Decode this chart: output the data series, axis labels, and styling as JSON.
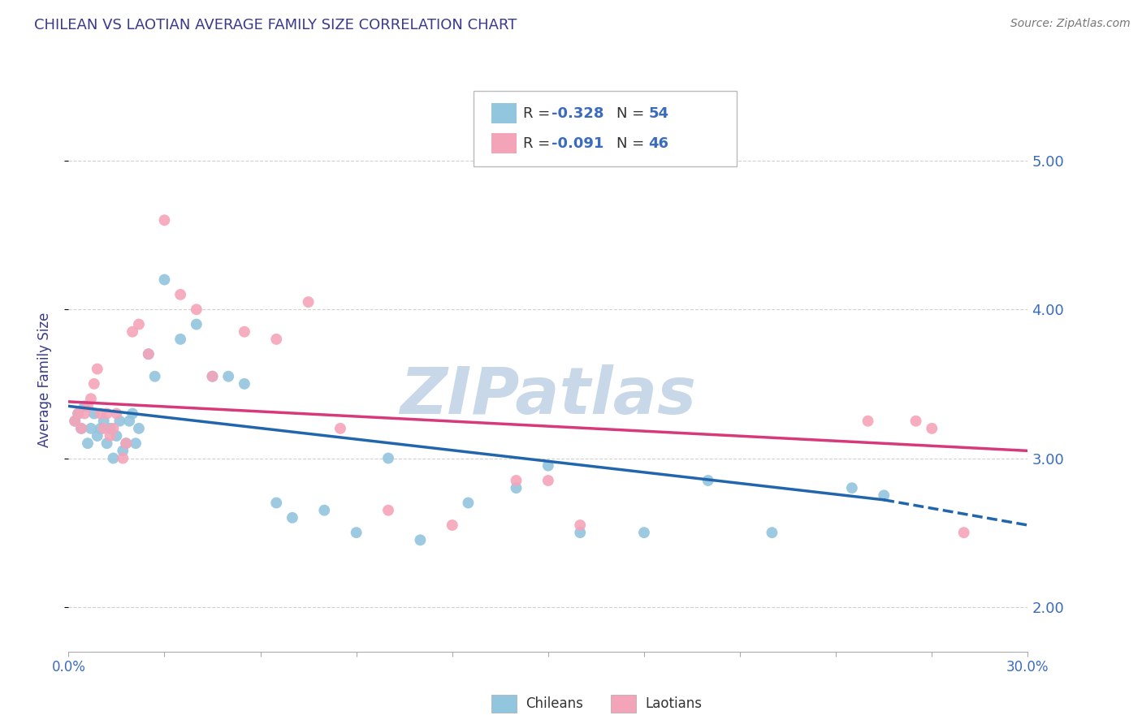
{
  "title": "CHILEAN VS LAOTIAN AVERAGE FAMILY SIZE CORRELATION CHART",
  "source_text": "Source: ZipAtlas.com",
  "ylabel": "Average Family Size",
  "color_chileans": "#92c5de",
  "color_laotians": "#f4a4b8",
  "color_line_chileans": "#2166ac",
  "color_line_laotians": "#d6604d",
  "title_color": "#3a3a8c",
  "axis_label_color": "#3a3a8c",
  "tick_color": "#3a6bbd",
  "source_color": "#777777",
  "background_color": "#ffffff",
  "grid_color": "#cccccc",
  "watermark_color": "#c8d8e8",
  "xmin": 0.0,
  "xmax": 30.0,
  "ymin": 1.7,
  "ymax": 5.35,
  "yticks": [
    2.0,
    3.0,
    4.0,
    5.0
  ],
  "legend_r_chileans": "-0.328",
  "legend_n_chileans": "54",
  "legend_r_laotians": "-0.091",
  "legend_n_laotians": "46",
  "chileans_x": [
    0.2,
    0.3,
    0.4,
    0.5,
    0.6,
    0.7,
    0.8,
    0.9,
    1.0,
    1.1,
    1.2,
    1.3,
    1.4,
    1.5,
    1.6,
    1.7,
    1.8,
    1.9,
    2.0,
    2.1,
    2.2,
    2.5,
    2.7,
    3.0,
    3.5,
    4.0,
    4.5,
    5.0,
    5.5,
    6.5,
    7.0,
    8.0,
    9.0,
    10.0,
    11.0,
    12.5,
    14.0,
    15.0,
    16.0,
    18.0,
    20.0,
    22.0,
    24.5,
    25.5
  ],
  "chileans_y": [
    3.25,
    3.3,
    3.2,
    3.35,
    3.1,
    3.2,
    3.3,
    3.15,
    3.2,
    3.25,
    3.1,
    3.2,
    3.0,
    3.15,
    3.25,
    3.05,
    3.1,
    3.25,
    3.3,
    3.1,
    3.2,
    3.7,
    3.55,
    4.2,
    3.8,
    3.9,
    3.55,
    3.55,
    3.5,
    2.7,
    2.6,
    2.65,
    2.5,
    3.0,
    2.45,
    2.7,
    2.8,
    2.95,
    2.5,
    2.5,
    2.85,
    2.5,
    2.8,
    2.75
  ],
  "laotians_x": [
    0.2,
    0.3,
    0.4,
    0.5,
    0.6,
    0.7,
    0.8,
    0.9,
    1.0,
    1.1,
    1.2,
    1.3,
    1.4,
    1.5,
    1.7,
    1.8,
    2.0,
    2.2,
    2.5,
    3.0,
    3.5,
    4.0,
    4.5,
    5.5,
    6.5,
    7.5,
    8.5,
    10.0,
    12.0,
    14.0,
    15.0,
    16.0,
    25.0,
    26.5,
    27.0,
    28.0
  ],
  "laotians_y": [
    3.25,
    3.3,
    3.2,
    3.3,
    3.35,
    3.4,
    3.5,
    3.6,
    3.3,
    3.2,
    3.3,
    3.15,
    3.2,
    3.3,
    3.0,
    3.1,
    3.85,
    3.9,
    3.7,
    4.6,
    4.1,
    4.0,
    3.55,
    3.85,
    3.8,
    4.05,
    3.2,
    2.65,
    2.55,
    2.85,
    2.85,
    2.55,
    3.25,
    3.25,
    3.2,
    2.5
  ],
  "chilean_trend_x0": 0.0,
  "chilean_trend_y0": 3.35,
  "chilean_trend_x1": 25.5,
  "chilean_trend_y1": 2.72,
  "chilean_ext_x0": 25.5,
  "chilean_ext_y0": 2.72,
  "chilean_ext_x1": 30.0,
  "chilean_ext_y1": 2.55,
  "laotian_trend_x0": 0.0,
  "laotian_trend_y0": 3.38,
  "laotian_trend_x1": 30.0,
  "laotian_trend_y1": 3.05
}
